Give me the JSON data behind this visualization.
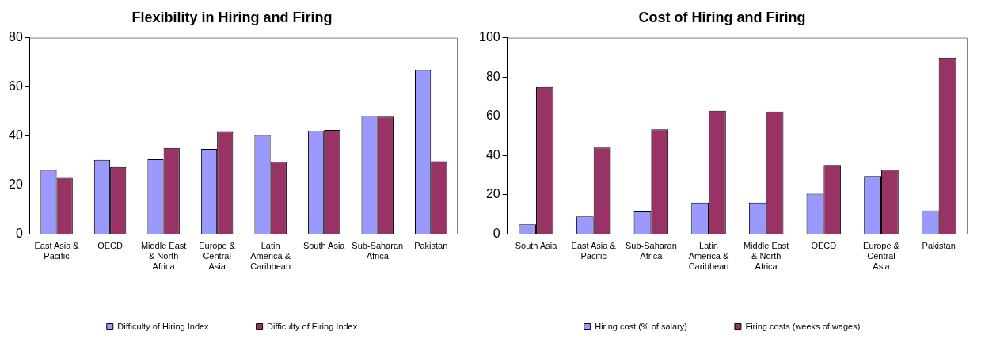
{
  "chart_data": [
    {
      "type": "bar",
      "title": "Flexibility in Hiring and Firing",
      "categories": [
        "East Asia & Pacific",
        "OECD",
        "Middle East & North Africa",
        "Europe & Central Asia",
        "Latin America & Caribbean",
        "South Asia",
        "Sub-Saharan Africa",
        "Pakistan"
      ],
      "series": [
        {
          "name": "Difficulty of Hiring Index",
          "color": "#9999ff",
          "values": [
            26.1,
            30.2,
            30.5,
            34.7,
            40.3,
            42,
            48.2,
            66.8
          ]
        },
        {
          "name": "Difficulty of Firing Index",
          "color": "#993366",
          "values": [
            22.9,
            27.3,
            35.1,
            41.6,
            29.4,
            42.4,
            47.8,
            29.7
          ]
        }
      ],
      "ylim": [
        0,
        80
      ],
      "yticks": [
        0,
        20,
        40,
        60,
        80
      ],
      "grid": false,
      "legend": "bottom"
    },
    {
      "type": "bar",
      "title": "Cost of Hiring and Firing",
      "categories": [
        "South Asia",
        "East Asia & Pacific",
        "Sub-Saharan Africa",
        "Latin America & Caribbean",
        "Middle East & North Africa",
        "OECD",
        "Europe & Central Asia",
        "Pakistan"
      ],
      "series": [
        {
          "name": "Hiring cost (% of salary)",
          "color": "#9999ff",
          "values": [
            4.9,
            8.9,
            11.5,
            16,
            16,
            20.5,
            29.5,
            12
          ]
        },
        {
          "name": "Firing costs (weeks of wages)",
          "color": "#993366",
          "values": [
            74.9,
            44,
            53.3,
            62.8,
            62.4,
            35.2,
            32.6,
            89.9
          ]
        }
      ],
      "ylim": [
        0,
        100
      ],
      "yticks": [
        0,
        20,
        40,
        60,
        80,
        100
      ],
      "grid": false,
      "legend": "bottom"
    }
  ]
}
